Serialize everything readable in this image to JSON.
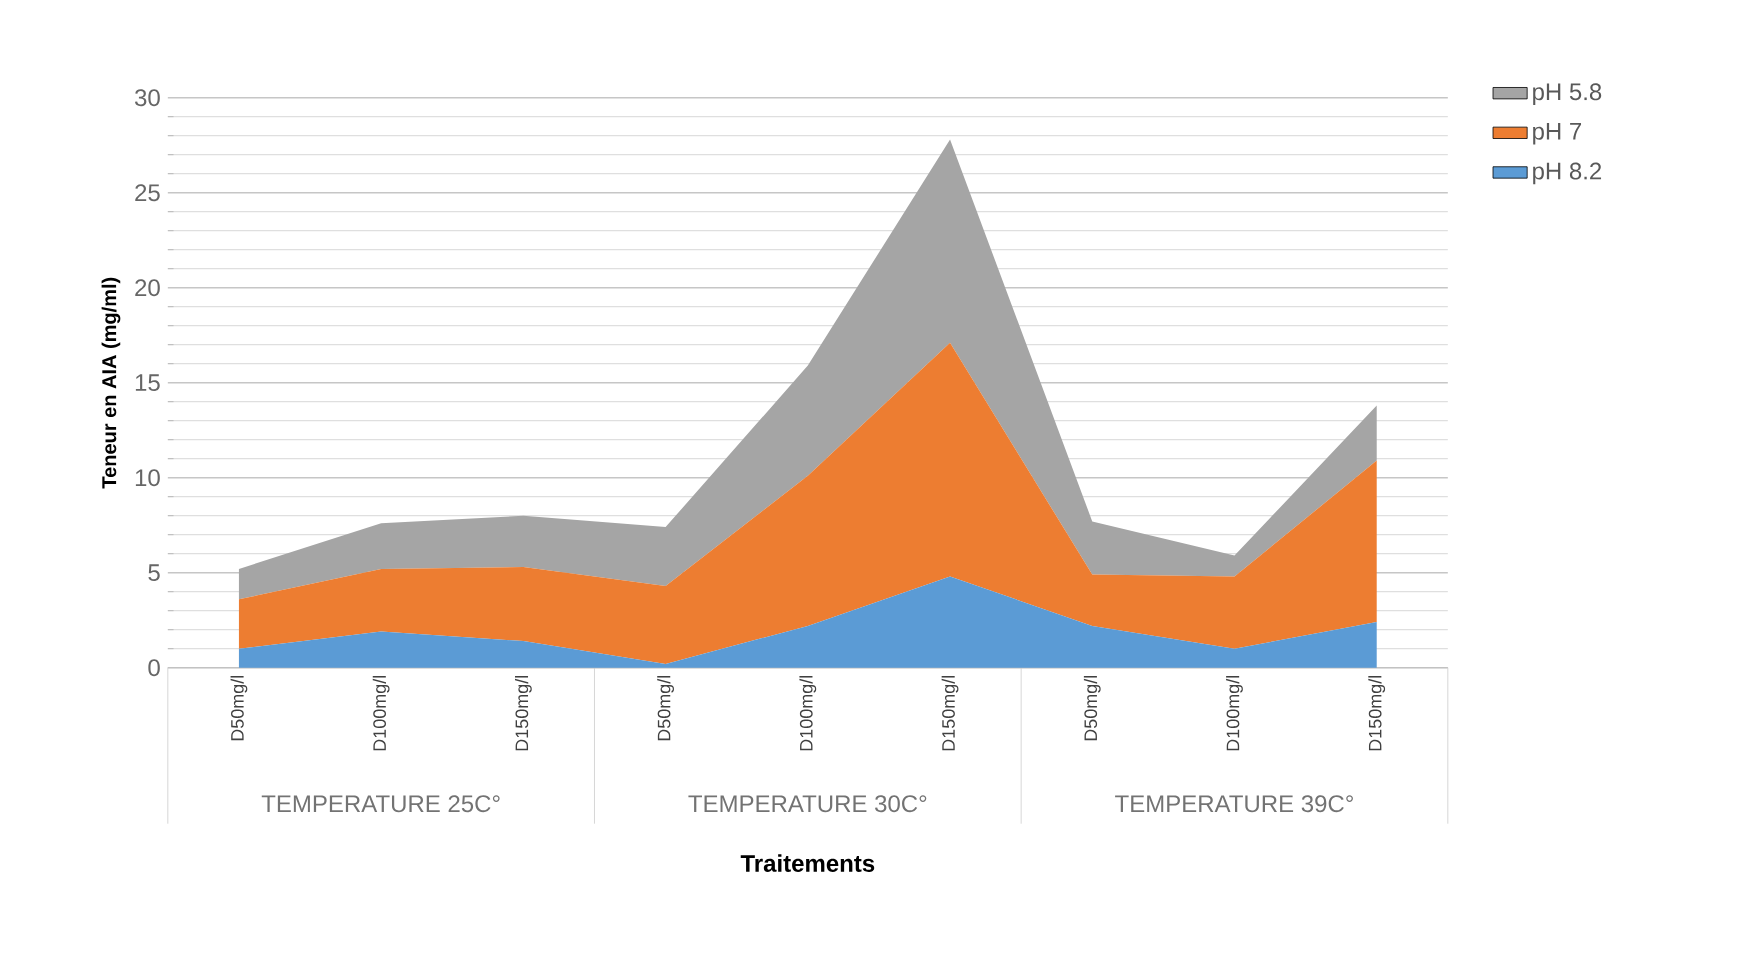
{
  "chart_data": {
    "type": "area",
    "stacked": true,
    "xlabel": "Traitements",
    "ylabel": "Teneur en AIA (mg/ml)",
    "categories": [
      "D50mg/l",
      "D100mg/l",
      "D150mg/l",
      "D50mg/l",
      "D100mg/l",
      "D150mg/l",
      "D50mg/l",
      "D100mg/l",
      "D150mg/l"
    ],
    "series": [
      {
        "name": "pH 8.2",
        "color": "#5b9bd5",
        "values": [
          1.0,
          1.9,
          1.4,
          0.2,
          2.2,
          4.8,
          2.2,
          1.0,
          2.4
        ]
      },
      {
        "name": "pH 7",
        "color": "#ed7d31",
        "values": [
          2.6,
          3.3,
          3.9,
          4.1,
          7.9,
          12.3,
          2.7,
          3.8,
          8.5
        ]
      },
      {
        "name": "pH 5.8",
        "color": "#a5a5a5",
        "values": [
          1.6,
          2.4,
          2.7,
          3.1,
          5.8,
          10.7,
          2.8,
          1.1,
          2.9
        ]
      }
    ],
    "annotations": [
      "TEMPERATURE 25C°",
      "TEMPERATURE 30C°",
      "TEMPERATURE 39C°"
    ],
    "ylim": [
      0,
      30
    ],
    "yticks": [
      0,
      5,
      10,
      15,
      20,
      25,
      30
    ],
    "grid": "y",
    "legend": "top right"
  }
}
